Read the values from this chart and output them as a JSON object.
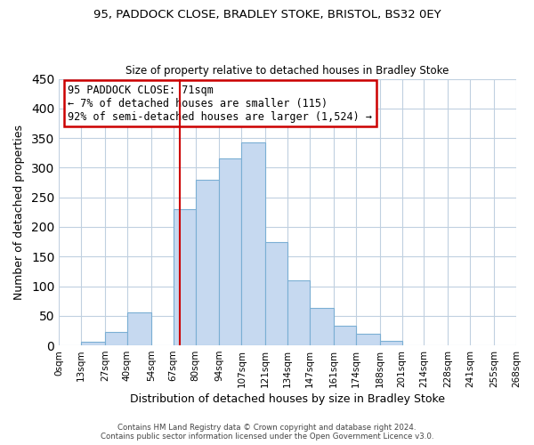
{
  "title1": "95, PADDOCK CLOSE, BRADLEY STOKE, BRISTOL, BS32 0EY",
  "title2": "Size of property relative to detached houses in Bradley Stoke",
  "xlabel": "Distribution of detached houses by size in Bradley Stoke",
  "ylabel": "Number of detached properties",
  "bar_edges": [
    0,
    13,
    27,
    40,
    54,
    67,
    80,
    94,
    107,
    121,
    134,
    147,
    161,
    174,
    188,
    201,
    214,
    228,
    241,
    255,
    268
  ],
  "bar_heights": [
    0,
    6,
    22,
    55,
    0,
    230,
    280,
    315,
    343,
    175,
    110,
    63,
    33,
    19,
    8,
    0,
    0,
    0,
    0,
    0
  ],
  "bar_color": "#c6d9f0",
  "bar_edgecolor": "#7bafd4",
  "vline_x": 71,
  "vline_color": "#cc0000",
  "annotation_title": "95 PADDOCK CLOSE: 71sqm",
  "annotation_line1": "← 7% of detached houses are smaller (115)",
  "annotation_line2": "92% of semi-detached houses are larger (1,524) →",
  "annotation_box_color": "#ffffff",
  "annotation_box_edgecolor": "#cc0000",
  "xlim": [
    0,
    268
  ],
  "ylim": [
    0,
    450
  ],
  "yticks": [
    0,
    50,
    100,
    150,
    200,
    250,
    300,
    350,
    400,
    450
  ],
  "xtick_labels": [
    "0sqm",
    "13sqm",
    "27sqm",
    "40sqm",
    "54sqm",
    "67sqm",
    "80sqm",
    "94sqm",
    "107sqm",
    "121sqm",
    "134sqm",
    "147sqm",
    "161sqm",
    "174sqm",
    "188sqm",
    "201sqm",
    "214sqm",
    "228sqm",
    "241sqm",
    "255sqm",
    "268sqm"
  ],
  "xtick_positions": [
    0,
    13,
    27,
    40,
    54,
    67,
    80,
    94,
    107,
    121,
    134,
    147,
    161,
    174,
    188,
    201,
    214,
    228,
    241,
    255,
    268
  ],
  "footer1": "Contains HM Land Registry data © Crown copyright and database right 2024.",
  "footer2": "Contains public sector information licensed under the Open Government Licence v3.0.",
  "background_color": "#ffffff",
  "grid_color": "#c0d0e0"
}
